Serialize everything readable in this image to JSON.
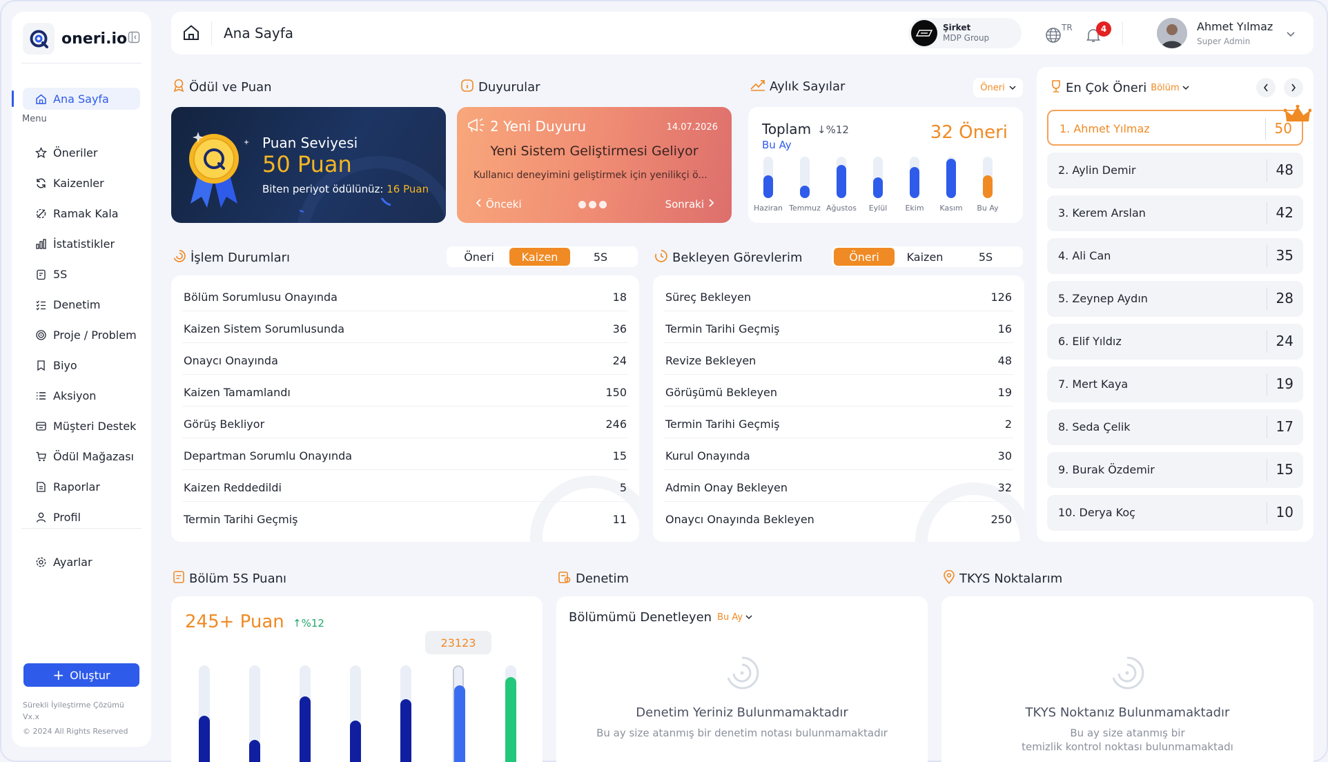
{
  "brand": {
    "name": "oneri.io"
  },
  "sidebar": {
    "menu_label": "Menu",
    "items": [
      {
        "label": "Ana Sayfa",
        "icon": "home-icon"
      },
      {
        "label": "Öneriler",
        "icon": "star-icon"
      },
      {
        "label": "Kaizenler",
        "icon": "refresh-icon"
      },
      {
        "label": "Ramak Kala",
        "icon": "near-miss-icon"
      },
      {
        "label": "İstatistikler",
        "icon": "bar-chart-icon"
      },
      {
        "label": "5S",
        "icon": "clipboard-icon"
      },
      {
        "label": "Denetim",
        "icon": "checklist-icon"
      },
      {
        "label": "Proje / Problem",
        "icon": "target-icon"
      },
      {
        "label": "Biyo",
        "icon": "bookmark-icon"
      },
      {
        "label": "Aksiyon",
        "icon": "list-icon"
      },
      {
        "label": "Müşteri Destek",
        "icon": "support-icon"
      },
      {
        "label": "Ödül Mağazası",
        "icon": "cart-icon"
      },
      {
        "label": "Raporlar",
        "icon": "report-icon"
      },
      {
        "label": "Profil",
        "icon": "user-icon"
      },
      {
        "label": "Ayarlar",
        "icon": "gear-icon"
      }
    ],
    "create_label": "Oluştur",
    "footer_line1": "Sürekli İyileştirme Çözümü",
    "footer_line2": "Vx.x",
    "footer_line3": "© 2024 All Rights Reserved"
  },
  "header": {
    "page_title": "Ana Sayfa",
    "company_label": "Şirket",
    "company_name": "MDP Group",
    "language": "TR",
    "notification_count": "4",
    "user_name": "Ahmet Yılmaz",
    "user_role": "Super Admin"
  },
  "reward": {
    "section_title": "Ödül ve Puan",
    "level_label": "Puan Seviyesi",
    "points": "50 Puan",
    "period_text": "Biten periyot ödülünüz:",
    "period_points": "16 Puan"
  },
  "announcements": {
    "section_title": "Duyurular",
    "count_text": "2 Yeni Duyuru",
    "date": "14.07.2026",
    "headline": "Yeni Sistem Geliştirmesi Geliyor",
    "body": "Kullanıcı deneyimini geliştirmek için yenilikçi ö...",
    "prev_label": "Önceki",
    "next_label": "Sonraki"
  },
  "monthly": {
    "section_title": "Aylık Sayılar",
    "filter": "Öneri",
    "total_label": "Toplam",
    "change": "%12",
    "period": "Bu Ay",
    "total_value": "32 Öneri",
    "bars": [
      {
        "label": "Haziran",
        "level": 0.55
      },
      {
        "label": "Temmuz",
        "level": 0.3
      },
      {
        "label": "Ağustos",
        "level": 0.8
      },
      {
        "label": "Eylül",
        "level": 0.5
      },
      {
        "label": "Ekim",
        "level": 0.75
      },
      {
        "label": "Kasım",
        "level": 0.95
      },
      {
        "label": "Bu Ay",
        "level": 0.55
      }
    ],
    "colors": {
      "bar": "#2e5bea",
      "current": "#f08a24"
    }
  },
  "top_suggestions": {
    "section_title": "En Çok Öneri",
    "filter": "Bölüm",
    "ranks": [
      {
        "name": "1.  Ahmet Yılmaz",
        "value": "50"
      },
      {
        "name": "2.  Aylin Demir",
        "value": "48"
      },
      {
        "name": "3.  Kerem Arslan",
        "value": "42"
      },
      {
        "name": "4. Ali Can",
        "value": "35"
      },
      {
        "name": "5. Zeynep Aydın",
        "value": "28"
      },
      {
        "name": "6. Elif Yıldız",
        "value": "24"
      },
      {
        "name": "7. Mert Kaya",
        "value": "19"
      },
      {
        "name": "8. Seda Çelik",
        "value": "17"
      },
      {
        "name": "9. Burak Özdemir",
        "value": "15"
      },
      {
        "name": "10. Derya Koç",
        "value": "10"
      }
    ]
  },
  "process_status": {
    "section_title": "İşlem Durumları",
    "tabs": [
      "Öneri",
      "Kaizen",
      "5S"
    ],
    "active_tab": "Kaizen",
    "rows": [
      {
        "label": "Bölüm Sorumlusu Onayında",
        "value": "18"
      },
      {
        "label": "Kaizen Sistem Sorumlusunda",
        "value": "36"
      },
      {
        "label": "Onaycı Onayında",
        "value": "24"
      },
      {
        "label": "Kaizen Tamamlandı",
        "value": "150"
      },
      {
        "label": "Görüş Bekliyor",
        "value": "246"
      },
      {
        "label": "Departman Sorumlu Onayında",
        "value": "15"
      },
      {
        "label": "Kaizen Reddedildi",
        "value": "5"
      },
      {
        "label": "Termin Tarihi Geçmiş",
        "value": "11"
      }
    ]
  },
  "pending_tasks": {
    "section_title": "Bekleyen Görevlerim",
    "tabs": [
      "Öneri",
      "Kaizen",
      "5S"
    ],
    "active_tab": "Öneri",
    "rows": [
      {
        "label": "Süreç Bekleyen",
        "value": "126"
      },
      {
        "label": "Termin Tarihi Geçmiş",
        "value": "16"
      },
      {
        "label": "Revize Bekleyen",
        "value": "48"
      },
      {
        "label": "Görüşümü Bekleyen",
        "value": "19"
      },
      {
        "label": "Termin Tarihi Geçmiş",
        "value": "2"
      },
      {
        "label": "Kurul Onayında",
        "value": "30"
      },
      {
        "label": "Admin Onay Bekleyen",
        "value": "32"
      },
      {
        "label": "Onaycı Onayında Bekleyen",
        "value": "250"
      }
    ]
  },
  "section5s": {
    "section_title": "Bölüm 5S Puanı",
    "score": "245+ Puan",
    "change": "%12",
    "tooltip": "23123",
    "bars": [
      0.55,
      0.3,
      0.75,
      0.5,
      0.72,
      0.85,
      0.95
    ],
    "colors": {
      "bar": "#0f1fa0",
      "highlight": "#3a6cf0",
      "last": "#21c77a"
    }
  },
  "audit": {
    "section_title": "Denetim",
    "card_title": "Bölümümü Denetleyen",
    "period": "Bu Ay",
    "empty_title": "Denetim Yeriniz Bulunmamaktadır",
    "empty_sub": "Bu ay size atanmış bir denetim notası bulunmamaktadır"
  },
  "tkys": {
    "section_title": "TKYS Noktalarım",
    "empty_title": "TKYS Noktanız Bulunmamaktadır",
    "empty_sub1": "Bu ay size atanmış bir",
    "empty_sub2": "temizlik kontrol noktası bulunmamaktadı"
  }
}
